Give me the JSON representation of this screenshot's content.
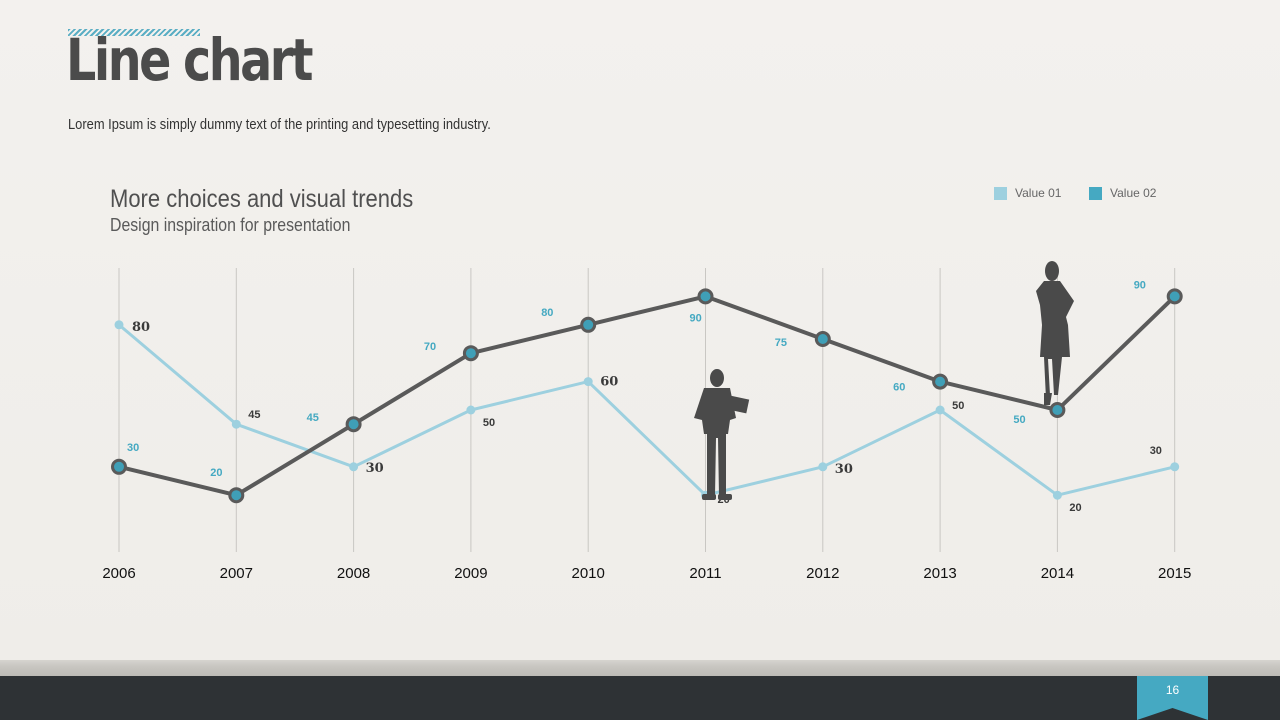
{
  "header": {
    "title": "Line chart",
    "subtitle": "Lorem Ipsum is simply dummy text of the printing and typesetting industry."
  },
  "chart_heading": {
    "title": "More choices and visual trends",
    "subtitle": "Design inspiration for presentation"
  },
  "legend": [
    {
      "label": "Value 01",
      "color": "#9dd0df"
    },
    {
      "label": "Value 02",
      "color": "#45a9c2"
    }
  ],
  "colors": {
    "accent": "#45a9c2",
    "light_line": "#9dd0df",
    "dark_line": "#5a5a5a",
    "marker_fill": "#3f9fb7"
  },
  "footer": {
    "page_number": "16"
  },
  "icons": [
    "person-silhouette-with-folder-icon",
    "woman-silhouette-icon"
  ],
  "chart_data": {
    "type": "line",
    "x": [
      "2006",
      "2007",
      "2008",
      "2009",
      "2010",
      "2011",
      "2012",
      "2013",
      "2014",
      "2015"
    ],
    "ylim": [
      0,
      100
    ],
    "grid": "vertical",
    "legend_position": "top-right",
    "series": [
      {
        "name": "Value 01",
        "values": [
          80,
          45,
          30,
          50,
          60,
          20,
          30,
          50,
          20,
          30
        ]
      },
      {
        "name": "Value 02",
        "values": [
          30,
          20,
          45,
          70,
          80,
          90,
          75,
          60,
          50,
          90
        ]
      }
    ]
  }
}
